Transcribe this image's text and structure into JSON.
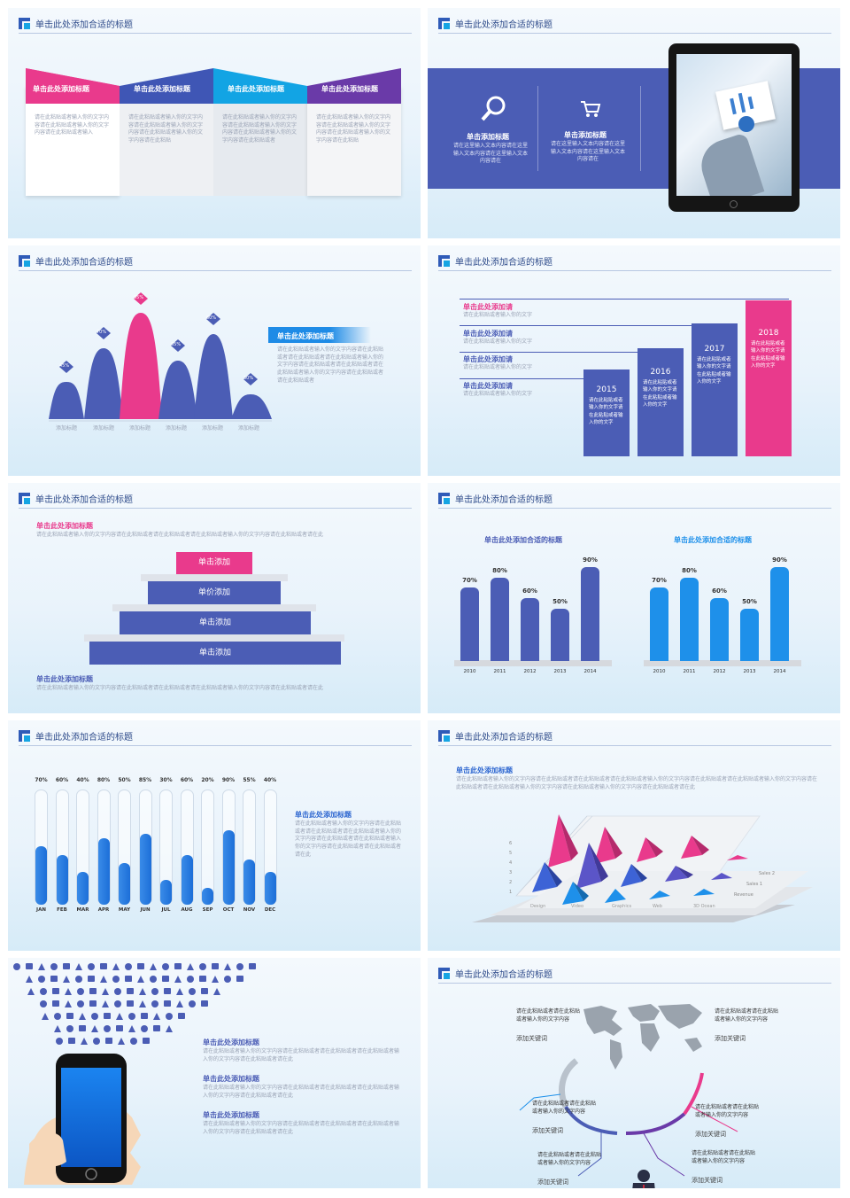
{
  "header_title": "单击此处添加合适的标题",
  "colors": {
    "blue": "#4b5db5",
    "pink": "#e93a8c",
    "cyan": "#1e90ea",
    "purple": "#6a3aa8"
  },
  "s1": {
    "boxes": [
      {
        "title": "单击此处添加标题",
        "body": "请在此粘贴或者输入你的文字内容请在此粘贴或者输入你的文字内容请在此粘贴或者输入"
      },
      {
        "title": "单击此处添加标题",
        "body": "请在此粘贴或者输入你的文字内容请在此粘贴或者输入你的文字内容请在此粘贴或者输入你的文字内容请在此粘贴"
      },
      {
        "title": "单击此处添加标题",
        "body": "请在此粘贴或者输入你的文字内容请在此粘贴或者输入你的文字内容请在此粘贴或者输入你的文字内容请在此粘贴或者"
      },
      {
        "title": "单击此处添加标题",
        "body": "请在此粘贴或者输入你的文字内容请在此粘贴或者输入你的文字内容请在此粘贴或者输入你的文字内容请在此粘贴"
      }
    ]
  },
  "s2": {
    "items": [
      {
        "icon": "search-icon",
        "title": "单击添加标题",
        "body": "请在这里输入文本内容请在这里输入文本内容请在这里输入文本内容请在"
      },
      {
        "icon": "cart-icon",
        "title": "单击添加标题",
        "body": "请在这里输入文本内容请在这里输入文本内容请在这里输入文本内容请在"
      }
    ]
  },
  "s3": {
    "peaks": [
      {
        "value": "45%",
        "label": "添加标题"
      },
      {
        "value": "70%",
        "label": "添加标题"
      },
      {
        "value": "95%",
        "label": "添加标题"
      },
      {
        "value": "65%",
        "label": "添加标题"
      },
      {
        "value": "80%",
        "label": "添加标题"
      },
      {
        "value": "30%",
        "label": "添加标题"
      }
    ],
    "title": "单击此处添加标题",
    "body": "请在此粘贴或者输入你的文字内容请在此粘贴或者请在此粘贴或者请在此粘贴或者输入你的文字内容请在此粘贴或者请在此粘贴或者请在此粘贴或者输入你的文字内容请在此粘贴或者请在此粘贴或者"
  },
  "s4": {
    "rows": [
      {
        "title": "单击此处添加请",
        "body": "请在此粘贴或者输入你的文字"
      },
      {
        "title": "单击此处添加请",
        "body": "请在此粘贴或者输入你的文字"
      },
      {
        "title": "单击此处添加请",
        "body": "请在此粘贴或者输入你的文字"
      },
      {
        "title": "单击此处添加请",
        "body": "请在此粘贴或者输入你的文字"
      }
    ],
    "bars": [
      {
        "year": "2015",
        "body": "请在此粘贴或者输入你的文字请在此粘贴或者输入你的文字"
      },
      {
        "year": "2016",
        "body": "请在此粘贴或者输入你的文字请在此粘贴或者输入你的文字"
      },
      {
        "year": "2017",
        "body": "请在此粘贴或者输入你的文字请在此粘贴或者输入你的文字"
      },
      {
        "year": "2018",
        "body": "请在此粘贴或者输入你的文字请在此粘贴或者输入你的文字"
      }
    ]
  },
  "s5": {
    "top_title": "单击此处添加标题",
    "top_body": "请在此粘贴或者输入你的文字内容请在此粘贴或者请在此粘贴或者请在此粘贴或者输入你的文字内容请在此粘贴或者请在此",
    "steps": [
      "单击添加",
      "单价添加",
      "单击添加",
      "单击添加"
    ],
    "bottom_title": "单击此处添加标题",
    "bottom_body": "请在此粘贴或者输入你的文字内容请在此粘贴或者请在此粘贴或者请在此粘贴或者输入你的文字内容请在此粘贴或者请在此"
  },
  "s6": {
    "charts": [
      {
        "title": "单击此处添加合适的标题",
        "years": [
          "2010",
          "2011",
          "2012",
          "2013",
          "2014"
        ],
        "values": [
          "70%",
          "80%",
          "60%",
          "50%",
          "90%"
        ]
      },
      {
        "title": "单击此处添加合适的标题",
        "years": [
          "2010",
          "2011",
          "2012",
          "2013",
          "2014"
        ],
        "values": [
          "70%",
          "80%",
          "60%",
          "50%",
          "90%"
        ]
      }
    ]
  },
  "s7": {
    "months": [
      "JAN",
      "FEB",
      "MAR",
      "APR",
      "MAY",
      "JUN",
      "JUL",
      "AUG",
      "SEP",
      "OCT",
      "NOV",
      "DEC"
    ],
    "values": [
      "70%",
      "60%",
      "40%",
      "80%",
      "50%",
      "85%",
      "30%",
      "60%",
      "20%",
      "90%",
      "55%",
      "40%"
    ],
    "title": "单击此处添加标题",
    "body": "请在此粘贴或者输入你的文字内容请在此粘贴或者请在此粘贴或者请在此粘贴或者输入你的文字内容请在此粘贴或者请在此粘贴或者输入你的文字内容请在此粘贴或者请在此粘贴或者请在此"
  },
  "s8": {
    "title": "单击此处添加标题",
    "body": "请在此粘贴或者输入你的文字内容请在此粘贴或者请在此粘贴或者请在此粘贴或者输入你的文字内容请在此粘贴或者请在此粘贴或者输入你的文字内容请在此粘贴或者请在此粘贴或者输入你的文字内容请在此粘贴或者输入你的文字内容请在此粘贴或者请在此",
    "y_ticks": [
      "6",
      "5",
      "4",
      "3",
      "2",
      "1"
    ],
    "categories": [
      "Design",
      "Video",
      "Graphics",
      "Web",
      "3D Ocean"
    ],
    "series": [
      "Sales 2",
      "Sales 1",
      "Revenue"
    ]
  },
  "s9": {
    "items": [
      {
        "title": "单击此处添加标题",
        "body": "请在此粘贴或者输入你的文字内容请在此粘贴或者请在此粘贴或者请在此粘贴或者输入你的文字内容请在此粘贴或者请在此"
      },
      {
        "title": "单击此处添加标题",
        "body": "请在此粘贴或者输入你的文字内容请在此粘贴或者请在此粘贴或者请在此粘贴或者输入你的文字内容请在此粘贴或者请在此"
      },
      {
        "title": "单击此处添加标题",
        "body": "请在此粘贴或者输入你的文字内容请在此粘贴或者请在此粘贴或者请在此粘贴或者输入你的文字内容请在此粘贴或者请在此"
      }
    ]
  },
  "s10": {
    "blocks": [
      {
        "body": "请在此粘贴或者请在此粘贴或者输入你的文字内容",
        "keyword": "添加关键词"
      },
      {
        "body": "请在此粘贴或者请在此粘贴或者输入你的文字内容",
        "keyword": "添加关键词"
      },
      {
        "body": "请在此粘贴或者请在此粘贴或者输入你的文字内容",
        "keyword": "添加关键词"
      },
      {
        "body": "请在此粘贴或者请在此粘贴或者输入你的文字内容",
        "keyword": "添加关键词"
      },
      {
        "body": "请在此粘贴或者请在此粘贴或者输入你的文字内容",
        "keyword": "添加关键词"
      },
      {
        "body": "请在此粘贴或者请在此粘贴或者输入你的文字内容",
        "keyword": "添加关键词"
      }
    ]
  }
}
